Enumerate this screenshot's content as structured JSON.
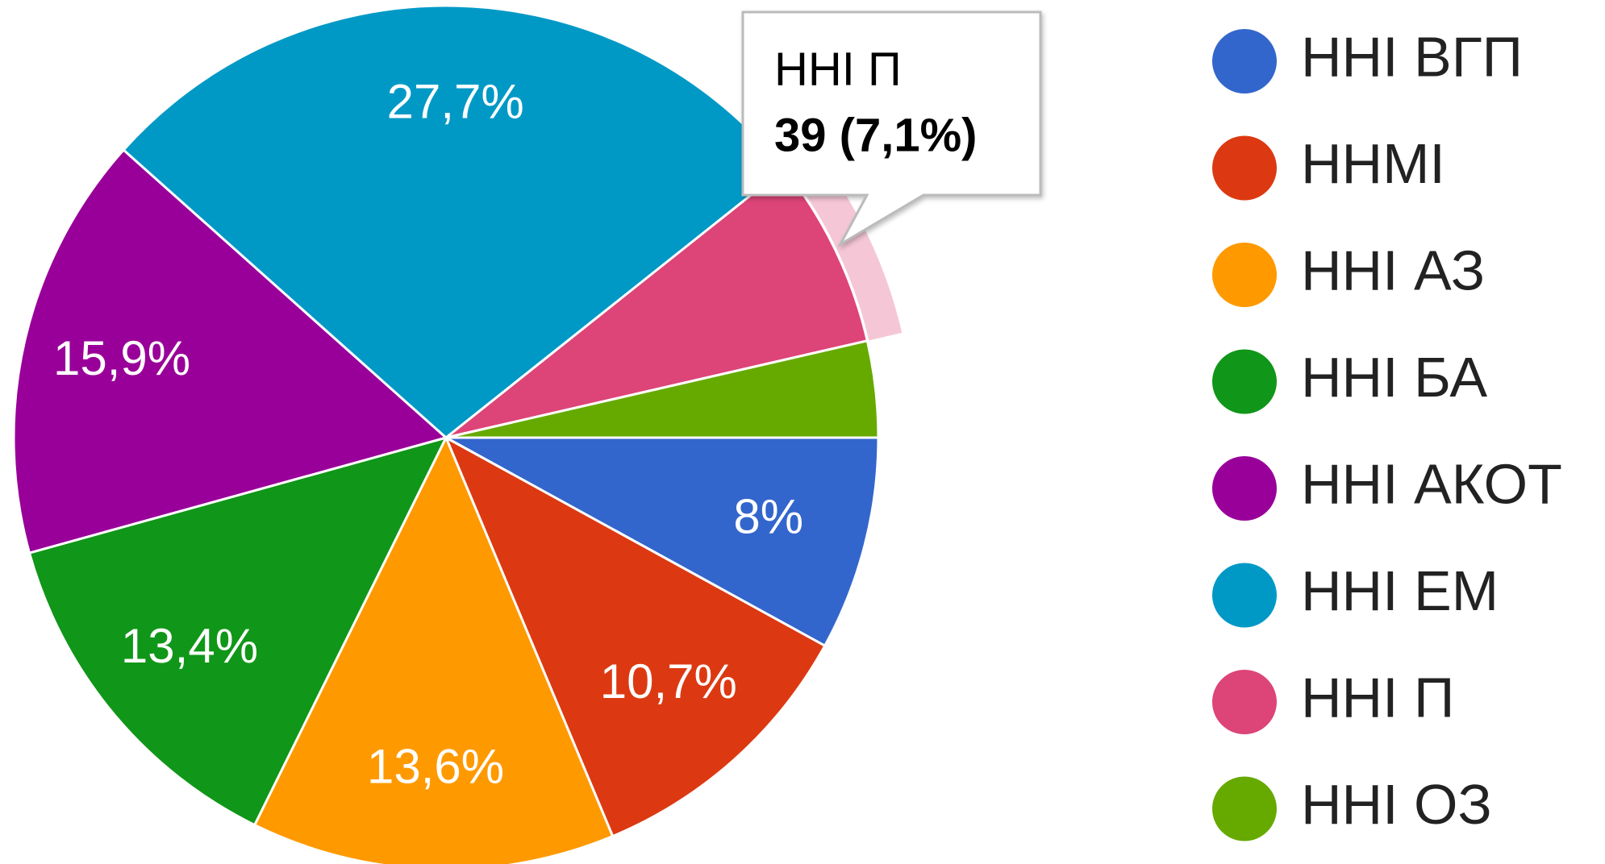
{
  "chart_data": {
    "type": "pie",
    "categories": [
      "ННІ ВГП",
      "ННМІ",
      "ННІ АЗ",
      "ННІ БА",
      "ННІ АКОТ",
      "ННІ ЕМ",
      "ННІ П",
      "ННІ ОЗ"
    ],
    "values": [
      8,
      10.7,
      13.6,
      13.4,
      15.9,
      27.7,
      7.1,
      3.6
    ],
    "value_labels": [
      "8%",
      "10,7%",
      "13,6%",
      "13,4%",
      "15,9%",
      "27,7%",
      null,
      null
    ],
    "colors": [
      "#3366cc",
      "#dc3912",
      "#ff9900",
      "#109618",
      "#990099",
      "#0099c6",
      "#dd4477",
      "#66aa00"
    ],
    "legend": "right",
    "highlight": 6,
    "tooltip": "39 (7,1%)"
  }
}
